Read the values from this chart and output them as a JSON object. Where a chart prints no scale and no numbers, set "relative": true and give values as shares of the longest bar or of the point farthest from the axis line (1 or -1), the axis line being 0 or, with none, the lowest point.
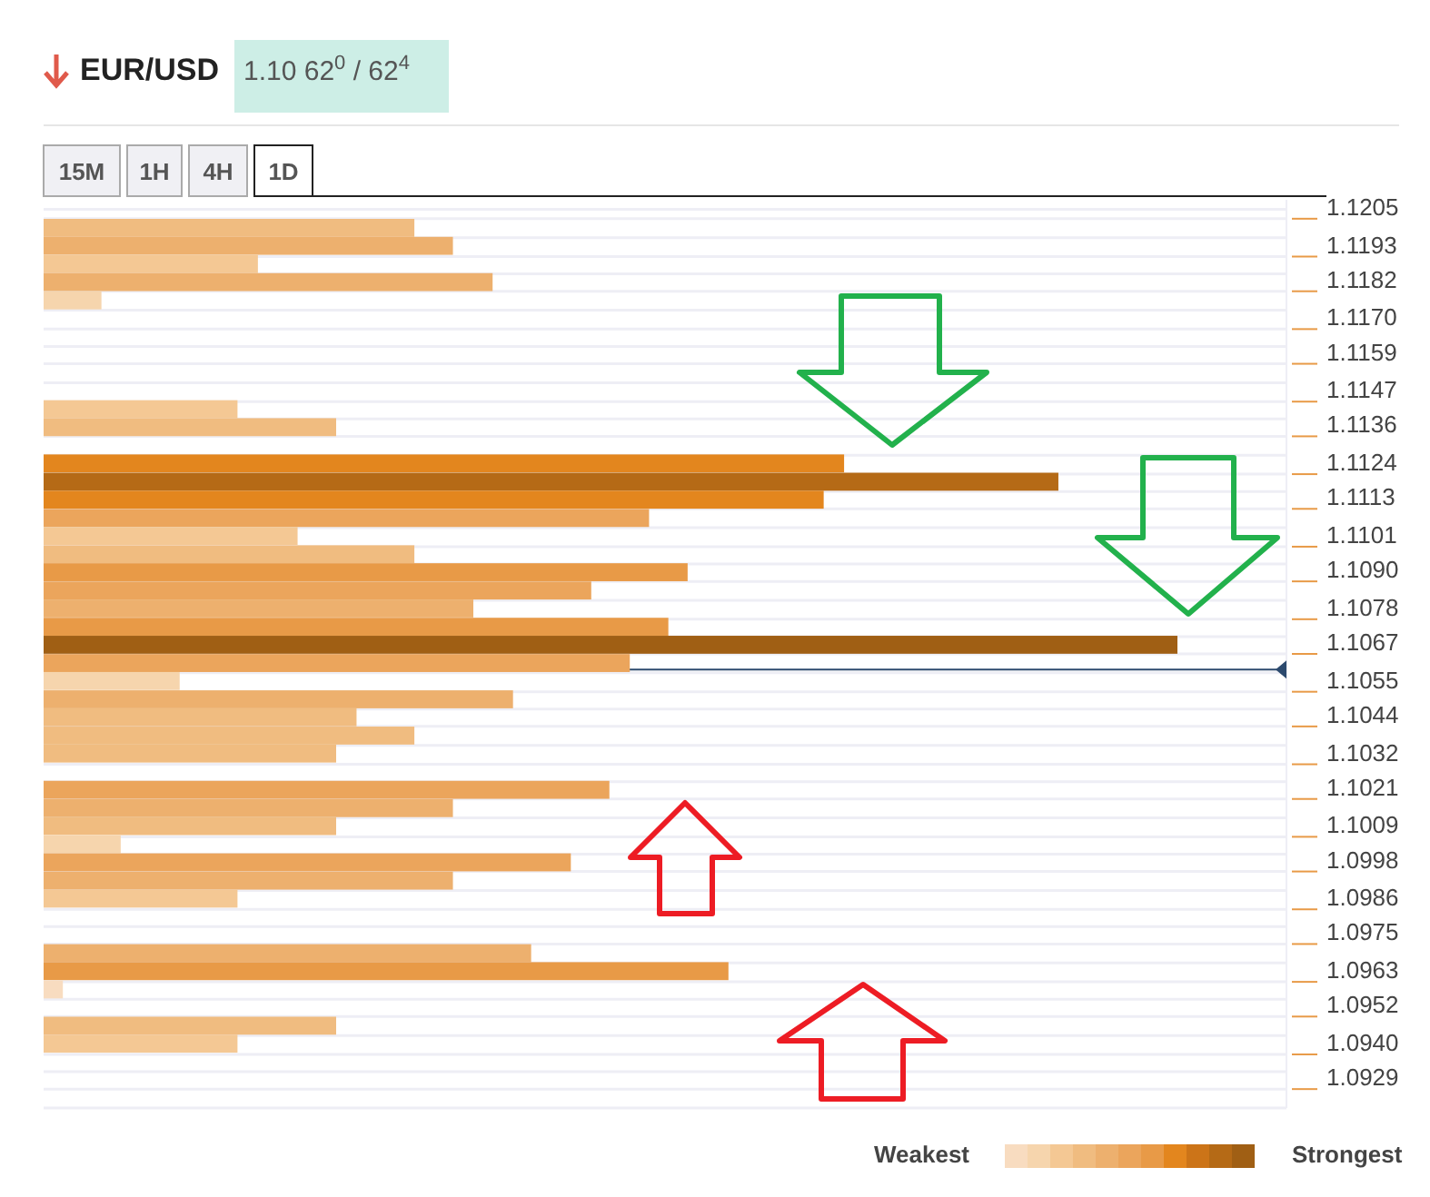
{
  "chart_data": {
    "type": "bar",
    "orientation": "horizontal",
    "relative": true,
    "title": "EUR/USD",
    "subtitle": "1.10 62$^{0}$ / 62$^{4}$",
    "x": [
      1.12021,
      1.11964,
      1.11906,
      1.11849,
      1.11791,
      1.11446,
      1.11389,
      1.11274,
      1.11216,
      1.11159,
      1.11101,
      1.11044,
      1.10986,
      1.10929,
      1.10871,
      1.10814,
      1.10756,
      1.10699,
      1.10641,
      1.10584,
      1.10526,
      1.10469,
      1.10411,
      1.10354,
      1.10239,
      1.10181,
      1.10124,
      1.10066,
      1.10009,
      1.09951,
      1.09894,
      1.09721,
      1.09664,
      1.09606,
      1.09491,
      1.09434
    ],
    "values": [
      0.327,
      0.361,
      0.189,
      0.396,
      0.051,
      0.171,
      0.258,
      0.706,
      0.895,
      0.688,
      0.534,
      0.224,
      0.327,
      0.568,
      0.483,
      0.379,
      0.551,
      1,
      0.517,
      0.12,
      0.414,
      0.276,
      0.327,
      0.258,
      0.499,
      0.361,
      0.258,
      0.068,
      0.465,
      0.361,
      0.171,
      0.43,
      0.604,
      0.017,
      0.258,
      0.171
    ],
    "colors": [
      "#f0bc80",
      "#edb06e",
      "#f4c894",
      "#edb06e",
      "#f6d5ad",
      "#f4c894",
      "#f0bc80",
      "#e3861e",
      "#b56a16",
      "#e3861e",
      "#eba55c",
      "#f4c894",
      "#f0bc80",
      "#e89a47",
      "#eba55c",
      "#edb06e",
      "#e89a47",
      "#a05f14",
      "#eba55c",
      "#f6d5ad",
      "#edb06e",
      "#f0bc80",
      "#f0bc80",
      "#f0bc80",
      "#eba55c",
      "#edb06e",
      "#f0bc80",
      "#f6d5ad",
      "#eba55c",
      "#edb06e",
      "#f4c894",
      "#edb06e",
      "#e89a47",
      "#f8dcc0",
      "#f0bc80",
      "#f4c894"
    ],
    "ylim": [
      1.0923,
      1.1211
    ],
    "yticks": [
      1.1205,
      1.1193,
      1.1182,
      {
        "value": 1.117,
        "label": "1.1170"
      },
      1.1159,
      1.1147,
      1.1136,
      1.1124,
      1.1113,
      1.1101,
      {
        "value": 1.109,
        "label": "1.1090"
      },
      1.1078,
      1.1067,
      1.1055,
      1.1044,
      1.1032,
      1.1021,
      1.1009,
      1.0998,
      1.0986,
      1.0975,
      1.0963,
      1.0952,
      {
        "value": 1.094,
        "label": "1.0940"
      },
      1.0929
    ],
    "grid": "y",
    "ref_lines": [
      {
        "axis": "y",
        "value": 1.1062,
        "color": "#2c4a6e"
      }
    ],
    "annotations": [
      "15M",
      "1H",
      "4H",
      "1D",
      "Weakest",
      "Strongest"
    ]
  }
}
